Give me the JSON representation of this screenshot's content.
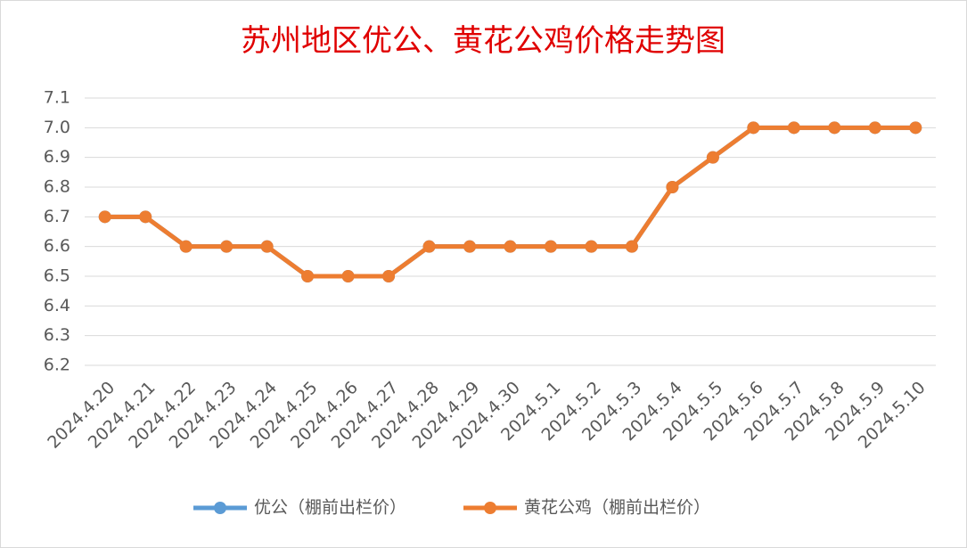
{
  "chart_data": {
    "type": "line",
    "title": "苏州地区优公、黄花公鸡价格走势图",
    "categories": [
      "2024.4.20",
      "2024.4.21",
      "2024.4.22",
      "2024.4.23",
      "2024.4.24",
      "2024.4.25",
      "2024.4.26",
      "2024.4.27",
      "2024.4.28",
      "2024.4.29",
      "2024.4.30",
      "2024.5.1",
      "2024.5.2",
      "2024.5.3",
      "2024.5.4",
      "2024.5.5",
      "2024.5.6",
      "2024.5.7",
      "2024.5.8",
      "2024.5.9",
      "2024.5.10"
    ],
    "series": [
      {
        "name": "优公（棚前出栏价）",
        "color": "#5b9bd5",
        "values": [
          6.7,
          6.7,
          6.6,
          6.6,
          6.6,
          6.5,
          6.5,
          6.5,
          6.6,
          6.6,
          6.6,
          6.6,
          6.6,
          6.6,
          6.8,
          6.9,
          7.0,
          7.0,
          7.0,
          7.0,
          7.0
        ]
      },
      {
        "name": "黄花公鸡（棚前出栏价）",
        "color": "#ed7d31",
        "values": [
          6.7,
          6.7,
          6.6,
          6.6,
          6.6,
          6.5,
          6.5,
          6.5,
          6.6,
          6.6,
          6.6,
          6.6,
          6.6,
          6.6,
          6.8,
          6.9,
          7.0,
          7.0,
          7.0,
          7.0,
          7.0
        ]
      }
    ],
    "ylim": [
      6.2,
      7.1
    ],
    "yticks": [
      6.2,
      6.3,
      6.4,
      6.5,
      6.6,
      6.7,
      6.8,
      6.9,
      {
        "value": 7,
        "label": "7.0"
      },
      7.1
    ],
    "grid": true,
    "legend": "bottom"
  }
}
